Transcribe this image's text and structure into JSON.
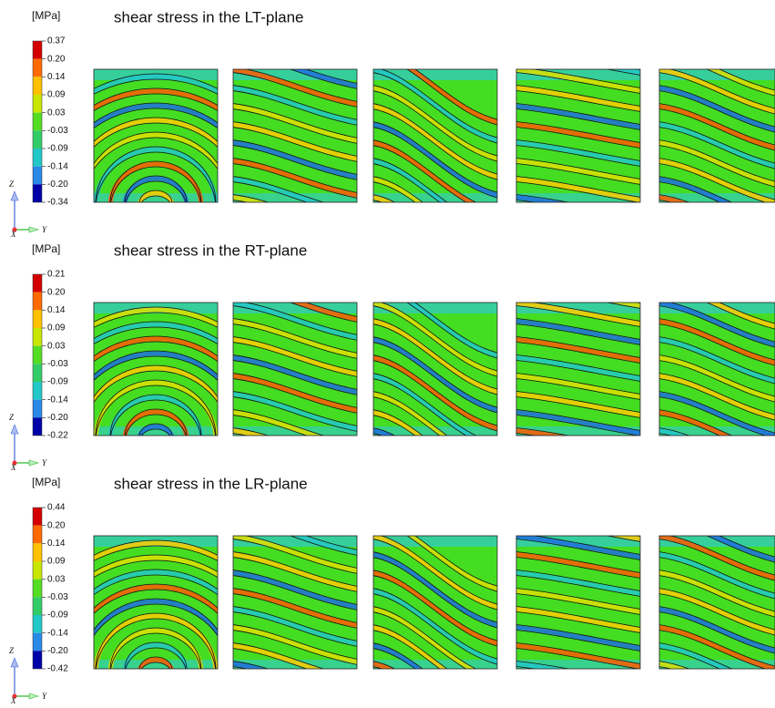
{
  "panels": [
    {
      "unit": "[MPa]",
      "title": "shear stress in the LT-plane",
      "legend_labels": [
        "0.37",
        "0.20",
        "0.14",
        "0.09",
        "0.03",
        "-0.03",
        "-0.09",
        "-0.14",
        "-0.20",
        "-0.34"
      ],
      "axes": {
        "z": "Z",
        "x": "X",
        "y": "Y"
      }
    },
    {
      "unit": "[MPa]",
      "title": "shear stress in the RT-plane",
      "legend_labels": [
        "0.21",
        "0.20",
        "0.14",
        "0.09",
        "0.03",
        "-0.03",
        "-0.09",
        "-0.14",
        "-0.20",
        "-0.22"
      ],
      "axes": {
        "z": "Z",
        "x": "X",
        "y": "Y"
      }
    },
    {
      "unit": "[MPa]",
      "title": "shear stress in the LR-plane",
      "legend_labels": [
        "0.44",
        "0.20",
        "0.14",
        "0.09",
        "0.03",
        "-0.03",
        "-0.09",
        "-0.14",
        "-0.20",
        "-0.42"
      ],
      "axes": {
        "z": "Z",
        "x": "X",
        "y": "Y"
      }
    }
  ]
}
